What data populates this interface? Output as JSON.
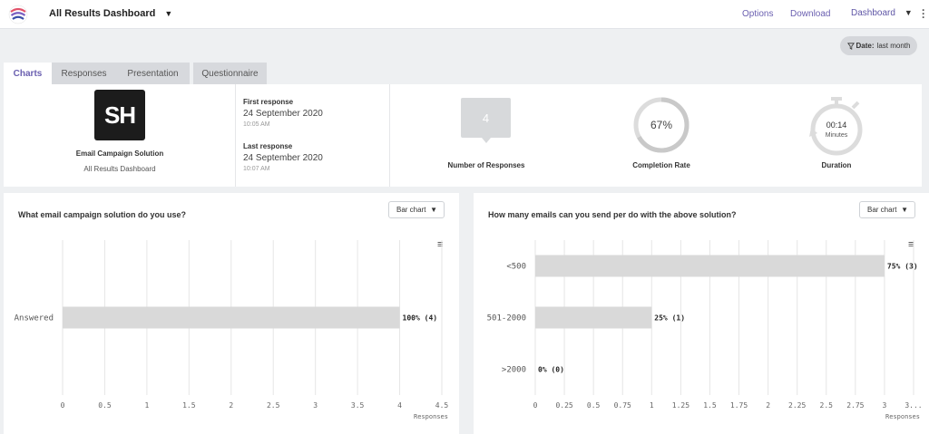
{
  "header": {
    "title": "All Results Dashboard",
    "links": [
      "Options",
      "Download"
    ],
    "dashboard_select": "Dashboard"
  },
  "filter": {
    "label": "Date:",
    "value": "last month"
  },
  "tabs": [
    "Charts",
    "Responses",
    "Presentation",
    "Questionnaire"
  ],
  "project": {
    "logo_text": "SH",
    "name": "Email Campaign Solution",
    "subtitle": "All Results Dashboard"
  },
  "first_response": {
    "label": "First response",
    "date": "24 September 2020",
    "time": "10:05 AM"
  },
  "last_response": {
    "label": "Last response",
    "date": "24 September 2020",
    "time": "10:07 AM"
  },
  "stats": {
    "responses": {
      "value": "4",
      "label": "Number of Responses"
    },
    "completion": {
      "value": "67%",
      "fraction": 0.67,
      "label": "Completion Rate"
    },
    "duration": {
      "value": "00:14",
      "unit": "Minutes",
      "label": "Duration"
    }
  },
  "colors": {
    "accent": "#6a5fb0",
    "bar": "#d9d9d9",
    "grid": "#e6e6e6"
  },
  "charts": [
    {
      "question": "What email campaign solution do you use?",
      "chart_type_select": "Bar chart",
      "chart_data": {
        "type": "bar",
        "orientation": "horizontal",
        "categories": [
          "Answered"
        ],
        "values": [
          4
        ],
        "data_labels": [
          "100% (4)"
        ],
        "xlabel": "Responses",
        "xlim": [
          0,
          4.5
        ],
        "ticks": [
          "0",
          "0.5",
          "1",
          "1.5",
          "2",
          "2.5",
          "3",
          "3.5",
          "4",
          "4.5"
        ]
      }
    },
    {
      "question": "How many emails can you send per do with the above solution?",
      "chart_type_select": "Bar chart",
      "chart_data": {
        "type": "bar",
        "orientation": "horizontal",
        "categories": [
          "<500",
          "501-2000",
          ">2000"
        ],
        "values": [
          3,
          1,
          0
        ],
        "data_labels": [
          "75% (3)",
          "25% (1)",
          "0% (0)"
        ],
        "xlabel": "Responses",
        "xlim": [
          0,
          3.25
        ],
        "ticks": [
          "0",
          "0.25",
          "0.5",
          "0.75",
          "1",
          "1.25",
          "1.5",
          "1.75",
          "2",
          "2.25",
          "2.5",
          "2.75",
          "3",
          "3..."
        ]
      }
    }
  ]
}
